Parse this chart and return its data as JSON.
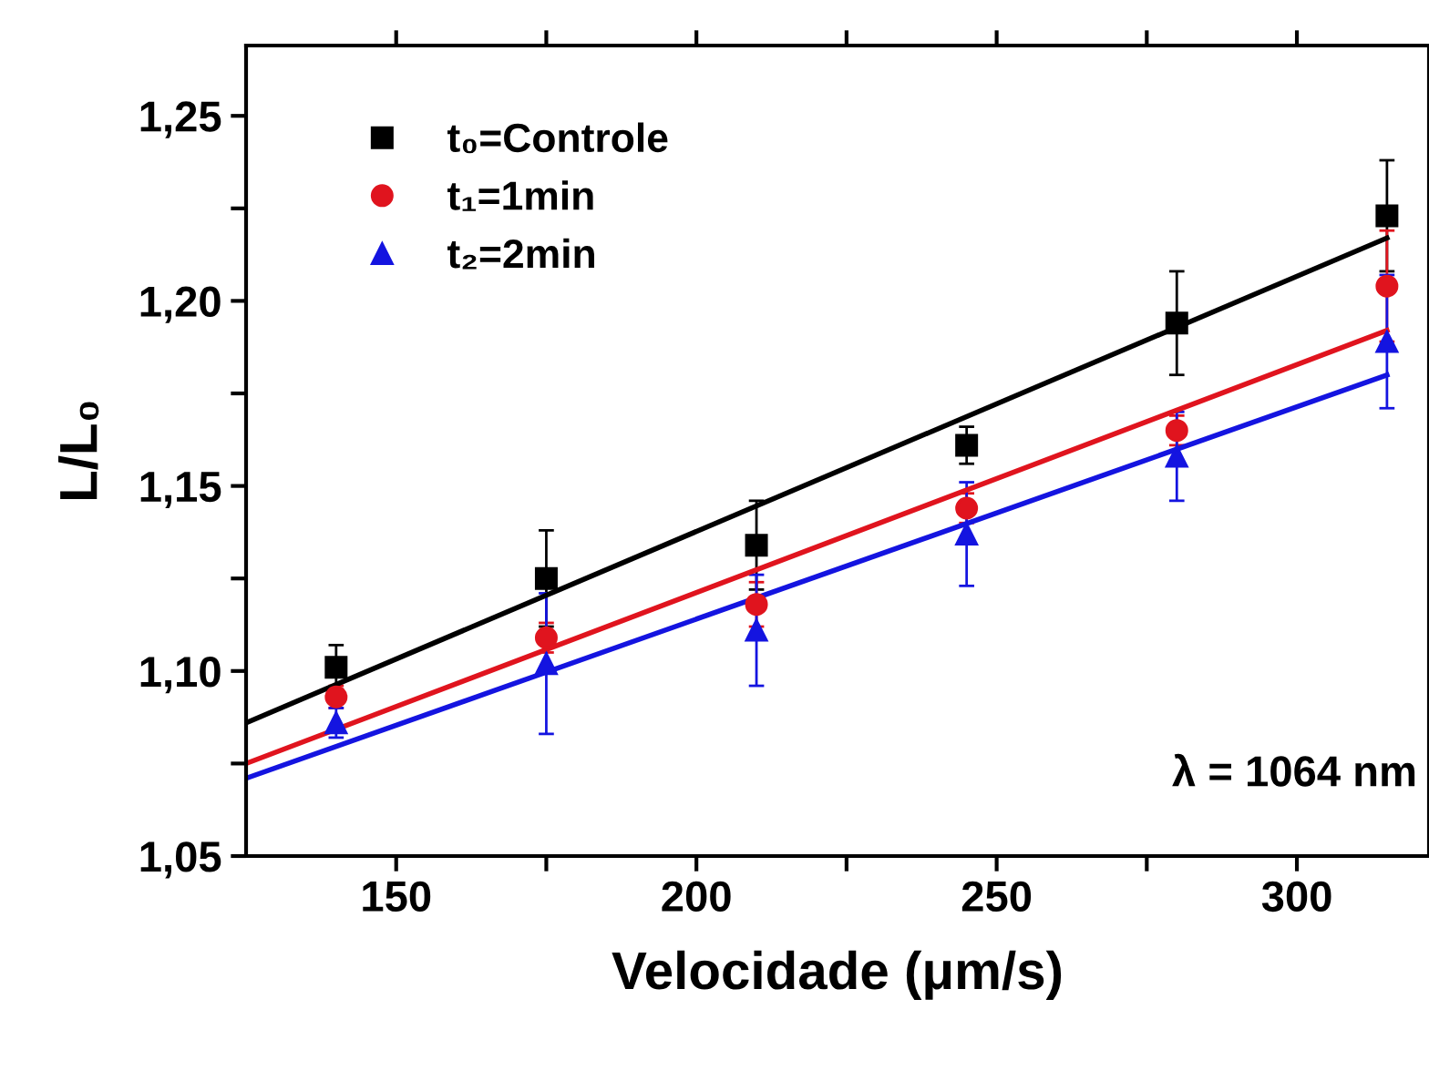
{
  "chart_data": {
    "type": "scatter",
    "xlabel": "Velocidade (μm/s)",
    "ylabel": "L/L₀",
    "xlim": [
      125,
      322
    ],
    "ylim": [
      1.05,
      1.269
    ],
    "xticks": [
      150,
      {
        "value": 175,
        "label": null
      },
      200,
      {
        "value": 225,
        "label": null
      },
      250,
      {
        "value": 275,
        "label": null
      },
      300
    ],
    "yticks": [
      {
        "value": 1.05,
        "label": "1,05"
      },
      {
        "value": 1.075,
        "label": null
      },
      {
        "value": 1.1,
        "label": "1,10"
      },
      {
        "value": 1.125,
        "label": null
      },
      {
        "value": 1.15,
        "label": "1,15"
      },
      {
        "value": 1.175,
        "label": null
      },
      {
        "value": 1.2,
        "label": "1,20"
      },
      {
        "value": 1.225,
        "label": null
      },
      {
        "value": 1.25,
        "label": "1,25"
      }
    ],
    "grid": false,
    "legend": "top left",
    "annotations": [
      "λ = 1064 nm"
    ],
    "series": [
      {
        "name": "t₀=Controle",
        "marker": "square",
        "color": "#000000",
        "x": [
          140,
          175,
          210,
          245,
          280,
          315
        ],
        "values": [
          1.101,
          1.125,
          1.134,
          1.161,
          1.194,
          1.223
        ],
        "errors": [
          0.006,
          0.013,
          0.012,
          0.005,
          0.014,
          0.015
        ]
      },
      {
        "name": "t₁=1min",
        "marker": "circle",
        "color": "#e0141e",
        "x": [
          140,
          175,
          210,
          245,
          280,
          315
        ],
        "values": [
          1.093,
          1.109,
          1.118,
          1.144,
          1.165,
          1.204
        ],
        "errors": [
          0.003,
          0.004,
          0.006,
          0.004,
          0.004,
          0.015
        ]
      },
      {
        "name": "t₂=2min",
        "marker": "triangle",
        "color": "#1414e0",
        "x": [
          140,
          175,
          210,
          245,
          280,
          315
        ],
        "values": [
          1.086,
          1.102,
          1.111,
          1.137,
          1.158,
          1.189
        ],
        "errors": [
          0.004,
          0.019,
          0.015,
          0.014,
          0.012,
          0.018
        ]
      },
      {
        "type": "line",
        "color": "#000000",
        "x": [
          125,
          315
        ],
        "values": [
          1.086,
          1.217
        ]
      },
      {
        "type": "line",
        "color": "#e0141e",
        "x": [
          125,
          315
        ],
        "values": [
          1.075,
          1.192
        ]
      },
      {
        "type": "line",
        "color": "#1414e0",
        "x": [
          125,
          315
        ],
        "values": [
          1.071,
          1.18
        ]
      }
    ]
  }
}
